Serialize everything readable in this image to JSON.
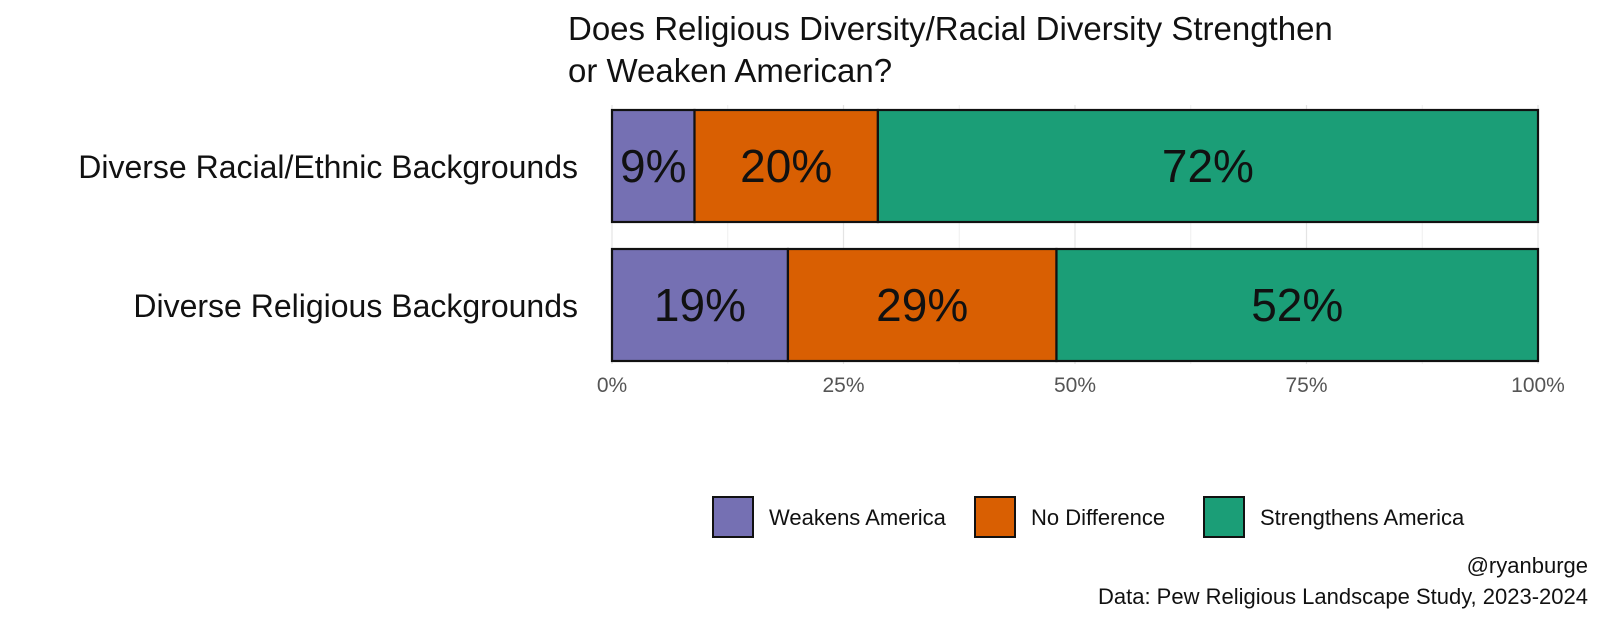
{
  "chart_data": {
    "type": "bar",
    "orientation": "horizontal",
    "stacked": true,
    "title": [
      "Does Religious Diversity/Racial Diversity Strengthen",
      "or Weaken American?"
    ],
    "categories": [
      "Diverse Racial/Ethnic Backgrounds",
      "Diverse Religious Backgrounds"
    ],
    "series": [
      {
        "name": "Weakens America",
        "color": "#7570b3",
        "values": [
          9,
          19
        ]
      },
      {
        "name": "No Difference",
        "color": "#d95f02",
        "values": [
          20,
          29
        ]
      },
      {
        "name": "Strengthens America",
        "color": "#1b9e77",
        "values": [
          72,
          52
        ]
      }
    ],
    "data_labels": [
      [
        "9%",
        "20%",
        "72%"
      ],
      [
        "19%",
        "29%",
        "52%"
      ]
    ],
    "x_ticks": [
      {
        "value": 0,
        "label": "0%"
      },
      {
        "value": 25,
        "label": "25%"
      },
      {
        "value": 50,
        "label": "50%"
      },
      {
        "value": 75,
        "label": "75%"
      },
      {
        "value": 100,
        "label": "100%"
      }
    ],
    "xlim": [
      0,
      100
    ],
    "grid": true,
    "legend": "bottom",
    "xlabel": "",
    "ylabel": ""
  },
  "caption": {
    "author": "@ryanburge",
    "source": "Data: Pew Religious Landscape Study, 2023-2024"
  }
}
